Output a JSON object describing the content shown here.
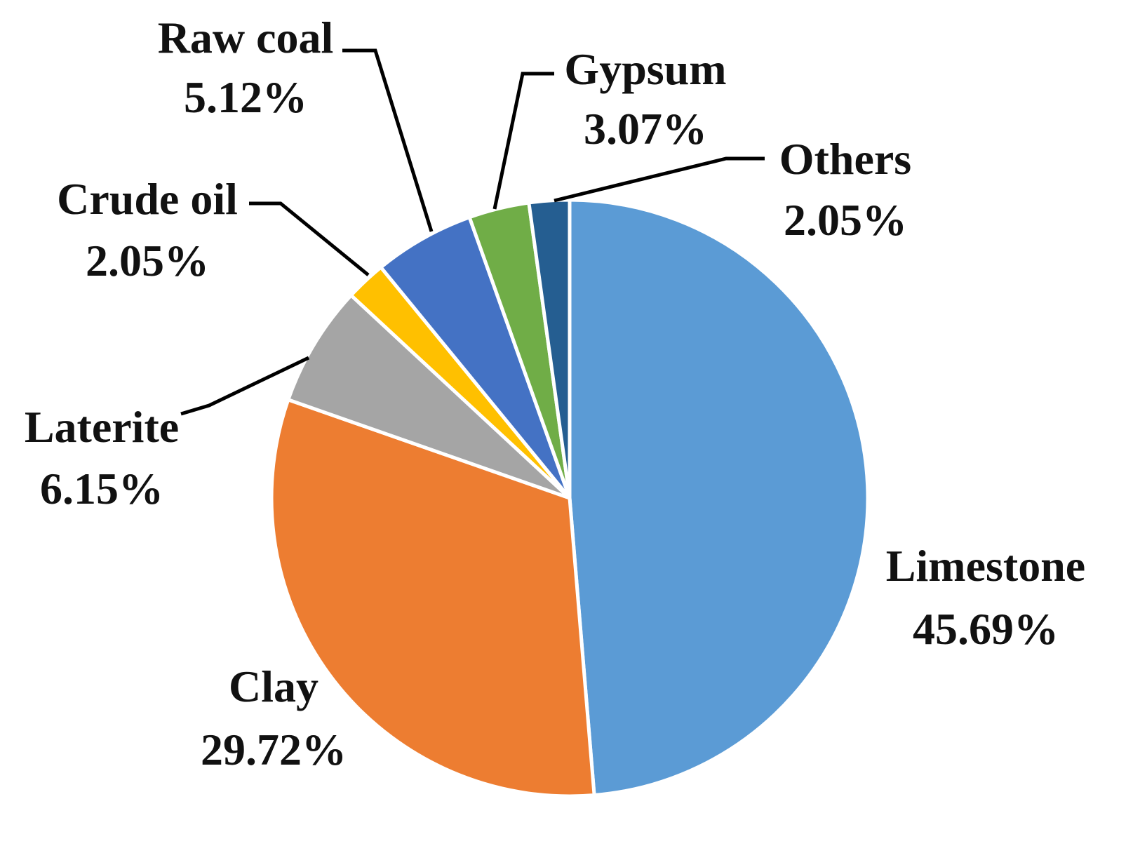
{
  "chart_data": {
    "type": "pie",
    "title": "",
    "slices": [
      {
        "label": "Limestone",
        "value": 45.69,
        "display": "45.69%",
        "color": "#5b9bd5"
      },
      {
        "label": "Clay",
        "value": 29.72,
        "display": "29.72%",
        "color": "#ed7d31"
      },
      {
        "label": "Laterite",
        "value": 6.15,
        "display": "6.15%",
        "color": "#a5a5a5"
      },
      {
        "label": "Crude oil",
        "value": 2.05,
        "display": "2.05%",
        "color": "#ffc000"
      },
      {
        "label": "Raw coal",
        "value": 5.12,
        "display": "5.12%",
        "color": "#4472c4"
      },
      {
        "label": "Gypsum",
        "value": 3.07,
        "display": "3.07%",
        "color": "#70ad47"
      },
      {
        "label": "Others",
        "value": 2.05,
        "display": "2.05%",
        "color": "#255e91"
      }
    ],
    "start": "12 o'clock, clockwise",
    "legend": "none (labels placed next to slices with leader lines)"
  }
}
